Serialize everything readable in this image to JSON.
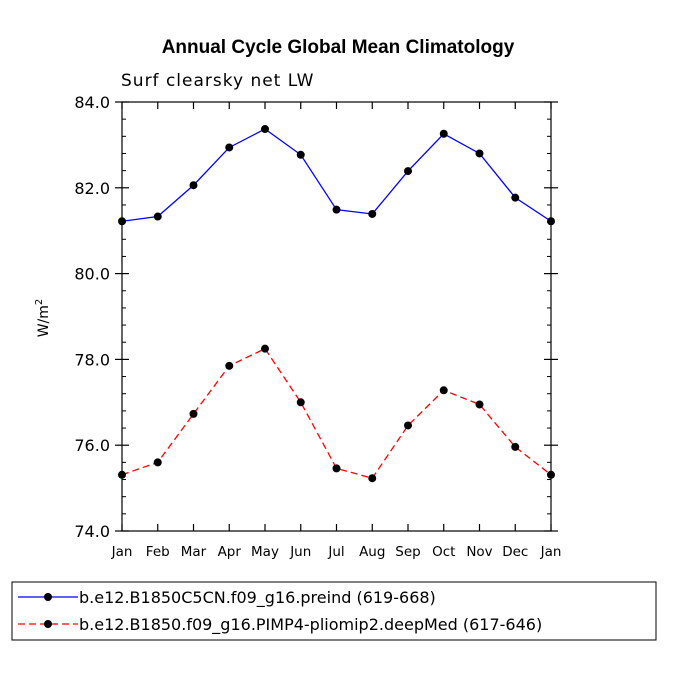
{
  "chart_data": {
    "type": "line",
    "title": "Annual Cycle Global Mean Climatology",
    "subtitle": "Surf clearsky net LW",
    "ylabel": "W/m",
    "ylabel_exponent": "2",
    "ylim": [
      74.0,
      84.0
    ],
    "yticks": [
      74.0,
      76.0,
      78.0,
      80.0,
      82.0,
      84.0
    ],
    "ytick_labels": [
      "74.0",
      "76.0",
      "78.0",
      "80.0",
      "82.0",
      "84.0"
    ],
    "categories": [
      "Jan",
      "Feb",
      "Mar",
      "Apr",
      "May",
      "Jun",
      "Jul",
      "Aug",
      "Sep",
      "Oct",
      "Nov",
      "Dec",
      "Jan"
    ],
    "series": [
      {
        "name": "b.e12.B1850C5CN.f09_g16.preind (619-668)",
        "color": "#0000ff",
        "dash": "solid",
        "values": [
          81.22,
          81.33,
          82.06,
          82.94,
          83.37,
          82.77,
          81.49,
          81.39,
          82.39,
          83.26,
          82.8,
          81.77,
          81.22
        ]
      },
      {
        "name": "b.e12.B1850.f09_g16.PIMP4-pliomip2.deepMed (617-646)",
        "color": "#ff0000",
        "dash": "dashed",
        "values": [
          75.31,
          75.6,
          76.73,
          77.85,
          78.25,
          77.0,
          75.46,
          75.23,
          76.46,
          77.28,
          76.95,
          75.96,
          75.31
        ]
      }
    ],
    "legend_location": "bottom"
  }
}
